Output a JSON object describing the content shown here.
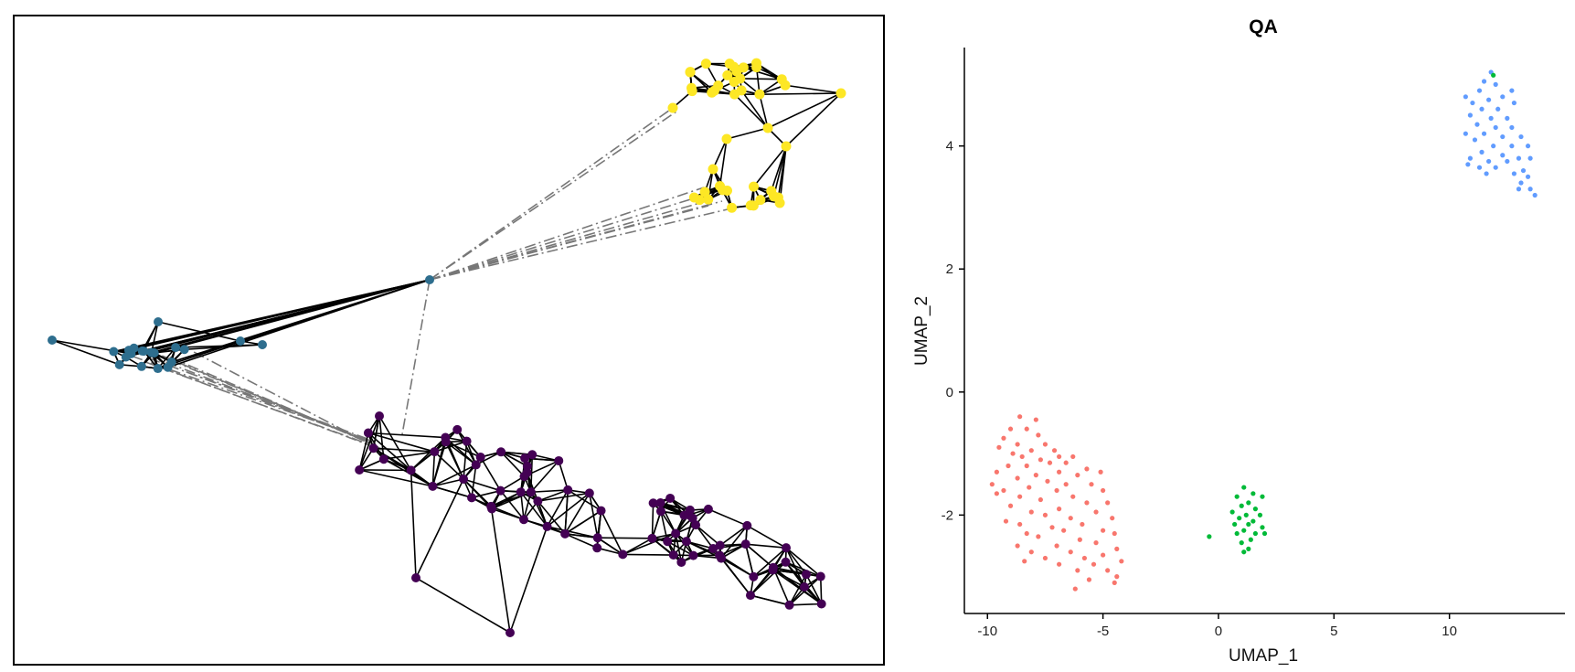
{
  "chart_data": [
    {
      "type": "network",
      "title": "",
      "node_colors": {
        "teal": "#2e6e8e",
        "yellow": "#fde725",
        "purple": "#440154"
      },
      "edge_colors": {
        "within_cluster": "#000000",
        "between_cluster": "#777777"
      },
      "edge_style": {
        "within_cluster": "solid",
        "between_cluster": "dash-dot"
      },
      "clusters": [
        {
          "color": "teal",
          "node_count": 20
        },
        {
          "color": "yellow",
          "node_count": 40
        },
        {
          "color": "purple",
          "node_count": 70
        }
      ],
      "hub": {
        "color": "teal"
      }
    },
    {
      "type": "scatter",
      "title": "QA",
      "xlabel": "UMAP_1",
      "ylabel": "UMAP_2",
      "xlim": [
        -11,
        15
      ],
      "ylim": [
        -3.6,
        5.6
      ],
      "xticks": [
        -10,
        -5,
        0,
        5,
        10
      ],
      "xtick_labels": [
        "-10",
        "-5",
        "0",
        "5",
        "10"
      ],
      "yticks": [
        -2,
        0,
        2,
        4
      ],
      "ytick_labels": [
        "-2",
        "0",
        "2",
        "4"
      ],
      "grid": false,
      "legend": "none",
      "series": [
        {
          "color": "#f8766d",
          "points": [
            [
              -8.6,
              -0.4
            ],
            [
              -7.9,
              -0.45
            ],
            [
              -9.0,
              -0.6
            ],
            [
              -8.3,
              -0.6
            ],
            [
              -7.8,
              -0.7
            ],
            [
              -9.3,
              -0.75
            ],
            [
              -8.7,
              -0.85
            ],
            [
              -7.5,
              -0.85
            ],
            [
              -9.5,
              -0.9
            ],
            [
              -8.1,
              -0.95
            ],
            [
              -7.1,
              -0.95
            ],
            [
              -8.9,
              -1.0
            ],
            [
              -6.9,
              -1.05
            ],
            [
              -8.5,
              -1.05
            ],
            [
              -6.3,
              -1.05
            ],
            [
              -7.7,
              -1.1
            ],
            [
              -9.1,
              -1.2
            ],
            [
              -7.3,
              -1.15
            ],
            [
              -6.6,
              -1.15
            ],
            [
              -8.3,
              -1.2
            ],
            [
              -5.7,
              -1.25
            ],
            [
              -6.9,
              -1.3
            ],
            [
              -9.6,
              -1.3
            ],
            [
              -7.9,
              -1.35
            ],
            [
              -6.1,
              -1.35
            ],
            [
              -5.1,
              -1.3
            ],
            [
              -8.7,
              -1.4
            ],
            [
              -7.4,
              -1.45
            ],
            [
              -9.8,
              -1.5
            ],
            [
              -6.6,
              -1.5
            ],
            [
              -5.5,
              -1.5
            ],
            [
              -8.2,
              -1.55
            ],
            [
              -9.3,
              -1.6
            ],
            [
              -7.0,
              -1.6
            ],
            [
              -5.0,
              -1.6
            ],
            [
              -9.6,
              -1.65
            ],
            [
              -6.3,
              -1.7
            ],
            [
              -8.6,
              -1.7
            ],
            [
              -7.7,
              -1.75
            ],
            [
              -5.7,
              -1.8
            ],
            [
              -4.8,
              -1.8
            ],
            [
              -9.0,
              -1.85
            ],
            [
              -6.9,
              -1.9
            ],
            [
              -8.1,
              -1.95
            ],
            [
              -5.3,
              -1.95
            ],
            [
              -7.5,
              -2.0
            ],
            [
              -6.4,
              -2.05
            ],
            [
              -4.6,
              -2.05
            ],
            [
              -9.2,
              -2.1
            ],
            [
              -8.6,
              -2.15
            ],
            [
              -5.9,
              -2.15
            ],
            [
              -7.2,
              -2.2
            ],
            [
              -6.7,
              -2.25
            ],
            [
              -5.0,
              -2.25
            ],
            [
              -8.3,
              -2.3
            ],
            [
              -4.5,
              -2.3
            ],
            [
              -7.8,
              -2.35
            ],
            [
              -6.0,
              -2.4
            ],
            [
              -5.3,
              -2.45
            ],
            [
              -8.7,
              -2.5
            ],
            [
              -7.0,
              -2.5
            ],
            [
              -4.4,
              -2.55
            ],
            [
              -8.1,
              -2.6
            ],
            [
              -6.4,
              -2.6
            ],
            [
              -5.0,
              -2.65
            ],
            [
              -7.5,
              -2.7
            ],
            [
              -5.8,
              -2.7
            ],
            [
              -4.2,
              -2.75
            ],
            [
              -8.4,
              -2.75
            ],
            [
              -6.9,
              -2.8
            ],
            [
              -5.4,
              -2.8
            ],
            [
              -4.8,
              -2.9
            ],
            [
              -6.1,
              -2.9
            ],
            [
              -4.4,
              -3.0
            ],
            [
              -5.6,
              -3.05
            ],
            [
              -4.5,
              -3.1
            ],
            [
              -6.2,
              -3.2
            ]
          ]
        },
        {
          "color": "#00ba38",
          "points": [
            [
              1.1,
              -1.55
            ],
            [
              1.5,
              -1.65
            ],
            [
              0.8,
              -1.7
            ],
            [
              1.3,
              -1.8
            ],
            [
              1.9,
              -1.7
            ],
            [
              1.0,
              -1.85
            ],
            [
              1.6,
              -1.9
            ],
            [
              0.6,
              -1.95
            ],
            [
              1.2,
              -2.0
            ],
            [
              1.8,
              -2.0
            ],
            [
              0.9,
              -2.05
            ],
            [
              1.5,
              -2.1
            ],
            [
              0.7,
              -2.15
            ],
            [
              1.3,
              -2.15
            ],
            [
              1.9,
              -2.2
            ],
            [
              1.1,
              -2.25
            ],
            [
              1.6,
              -2.3
            ],
            [
              0.8,
              -2.3
            ],
            [
              2.0,
              -2.3
            ],
            [
              1.4,
              -2.4
            ],
            [
              1.0,
              -2.45
            ],
            [
              1.3,
              -2.55
            ],
            [
              1.1,
              -2.6
            ],
            [
              -0.4,
              -2.35
            ]
          ]
        },
        {
          "color": "#619cff",
          "points": [
            [
              11.8,
              5.2
            ],
            [
              11.5,
              5.05
            ],
            [
              12.0,
              5.0
            ],
            [
              11.3,
              4.9
            ],
            [
              12.7,
              4.9
            ],
            [
              10.7,
              4.8
            ],
            [
              11.7,
              4.75
            ],
            [
              12.3,
              4.8
            ],
            [
              11.0,
              4.7
            ],
            [
              12.8,
              4.7
            ],
            [
              11.4,
              4.6
            ],
            [
              12.1,
              4.6
            ],
            [
              10.9,
              4.5
            ],
            [
              11.8,
              4.45
            ],
            [
              12.5,
              4.45
            ],
            [
              11.2,
              4.35
            ],
            [
              12.0,
              4.3
            ],
            [
              12.7,
              4.3
            ],
            [
              11.5,
              4.2
            ],
            [
              10.7,
              4.2
            ],
            [
              12.3,
              4.15
            ],
            [
              13.1,
              4.15
            ],
            [
              11.1,
              4.1
            ],
            [
              11.9,
              4.0
            ],
            [
              12.7,
              4.0
            ],
            [
              13.4,
              4.0
            ],
            [
              11.4,
              3.9
            ],
            [
              12.3,
              3.85
            ],
            [
              10.9,
              3.8
            ],
            [
              13.0,
              3.8
            ],
            [
              11.7,
              3.75
            ],
            [
              12.5,
              3.75
            ],
            [
              13.5,
              3.8
            ],
            [
              10.8,
              3.7
            ],
            [
              11.3,
              3.65
            ],
            [
              12.0,
              3.65
            ],
            [
              13.2,
              3.6
            ],
            [
              11.6,
              3.55
            ],
            [
              12.8,
              3.55
            ],
            [
              13.4,
              3.5
            ],
            [
              13.1,
              3.4
            ],
            [
              13.5,
              3.3
            ],
            [
              13.0,
              3.3
            ],
            [
              13.7,
              3.2
            ]
          ]
        },
        {
          "color": "#00ba38",
          "points": [
            [
              11.9,
              5.15
            ]
          ]
        }
      ]
    }
  ]
}
